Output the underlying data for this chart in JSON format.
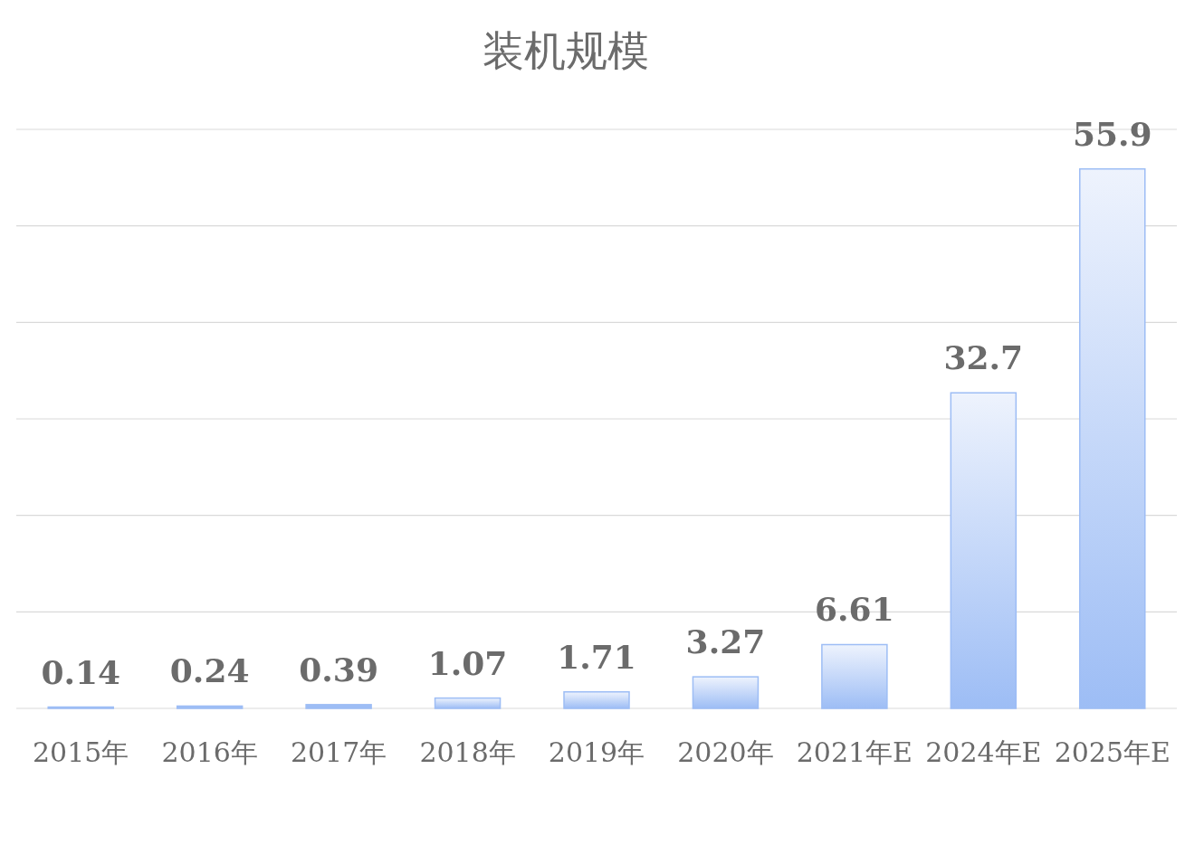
{
  "chart_data": {
    "type": "bar",
    "title": "装机规模",
    "categories": [
      "2015年",
      "2016年",
      "2017年",
      "2018年",
      "2019年",
      "2020年",
      "2021年E",
      "2024年E",
      "2025年E"
    ],
    "values": [
      0.14,
      0.24,
      0.39,
      1.07,
      1.71,
      3.27,
      6.61,
      32.7,
      55.9
    ],
    "color": "#9dbdf5",
    "ylim": [
      0,
      60
    ],
    "yticks": [
      {
        "value": 0,
        "label": null
      },
      {
        "value": 10,
        "label": null
      },
      {
        "value": 20,
        "label": null
      },
      {
        "value": 30,
        "label": null
      },
      {
        "value": 40,
        "label": null
      },
      {
        "value": 50,
        "label": null
      },
      {
        "value": 60,
        "label": null
      }
    ],
    "tick_labels": "x",
    "grid": "y",
    "data_labels": true
  }
}
